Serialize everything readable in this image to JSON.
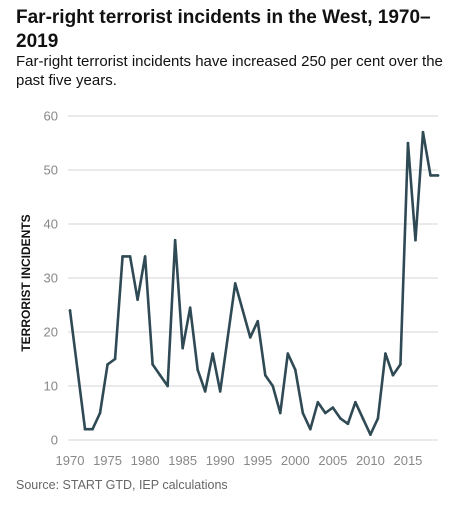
{
  "title": "Far-right terrorist incidents in the West, 1970–2019",
  "subtitle": "Far-right terrorist incidents have increased 250 per cent over the past five years.",
  "source": "Source: START GTD, IEP calculations",
  "chart_data": {
    "type": "line",
    "title": "Far-right terrorist incidents in the West, 1970–2019",
    "subtitle": "Far-right terrorist incidents have increased 250 per cent over the past five years.",
    "xlabel": "",
    "ylabel": "TERRORIST INCIDENTS",
    "xlim": [
      1970,
      2019
    ],
    "ylim": [
      0,
      60
    ],
    "x_ticks": [
      1970,
      1975,
      1980,
      1985,
      1990,
      1995,
      2000,
      2005,
      2010,
      2015
    ],
    "y_ticks": [
      0,
      10,
      20,
      30,
      40,
      50,
      60
    ],
    "grid": "horizontal",
    "line_color": "#2f4a55",
    "grid_color": "#d6d6d6",
    "series": [
      {
        "x": [
          1970,
          1971,
          1972,
          1973,
          1974,
          1975,
          1976,
          1977,
          1978,
          1979,
          1980,
          1981,
          1982,
          1983,
          1984,
          1985,
          1986,
          1987,
          1988,
          1989,
          1990,
          1991,
          1992,
          1993,
          1994,
          1995,
          1996,
          1997,
          1998,
          1999,
          2000,
          2001,
          2002,
          2003,
          2004,
          2005,
          2006,
          2007,
          2008,
          2009,
          2010,
          2011,
          2012,
          2013,
          2014,
          2015,
          2016,
          2017,
          2018,
          2019
        ],
        "values": [
          24,
          13,
          2,
          2,
          5,
          14,
          15,
          34,
          34,
          26,
          34,
          14,
          12,
          10,
          37,
          17,
          24.5,
          13,
          9,
          16,
          9,
          19,
          29,
          24,
          19,
          22,
          12,
          10,
          5,
          16,
          13,
          5,
          2,
          7,
          5,
          6,
          4,
          3,
          7,
          4,
          1,
          4,
          16,
          12,
          14,
          55,
          37,
          57,
          49,
          49
        ]
      }
    ]
  }
}
